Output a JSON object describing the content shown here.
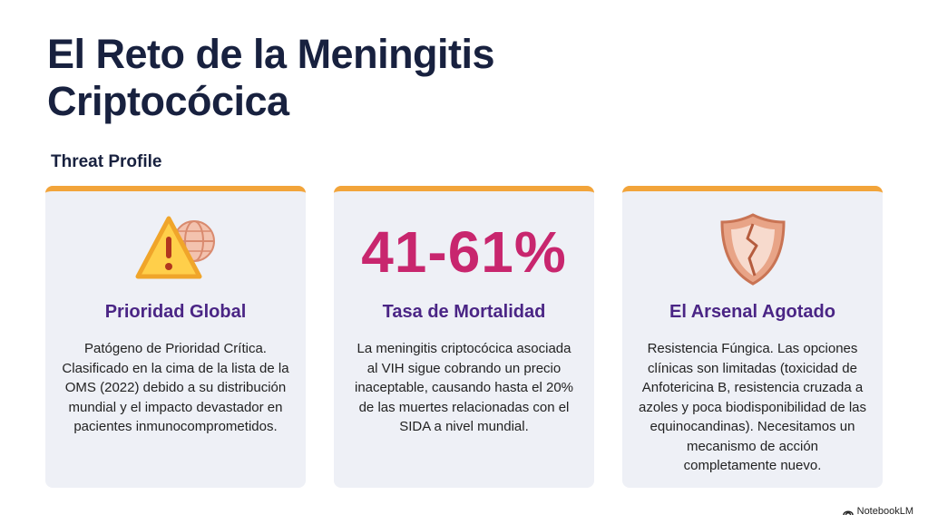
{
  "header": {
    "title": "El Reto de la Meningitis Criptocócica",
    "subtitle": "Threat Profile"
  },
  "cards": [
    {
      "title": "Prioridad Global",
      "text": "Patógeno de Prioridad Crítica. Clasificado en la cima de la lista de la OMS (2022) debido a su distribución mundial y el impacto devastador en pacientes inmunocomprometidos."
    },
    {
      "stat": "41-61%",
      "title": "Tasa de Mortalidad",
      "text": "La meningitis criptocócica asociada al VIH sigue cobrando un precio inaceptable, causando hasta el 20% de las muertes relacionadas con el SIDA a nivel mundial."
    },
    {
      "title": "El Arsenal Agotado",
      "text": "Resistencia Fúngica. Las opciones clínicas son limitadas (toxicidad de Anfotericina B, resistencia cruzada a azoles y poca biodisponibilidad de las equinocandinas). Necesitamos un mecanismo de acción completamente nuevo."
    }
  ],
  "footer": {
    "brand": "NotebookLM"
  }
}
